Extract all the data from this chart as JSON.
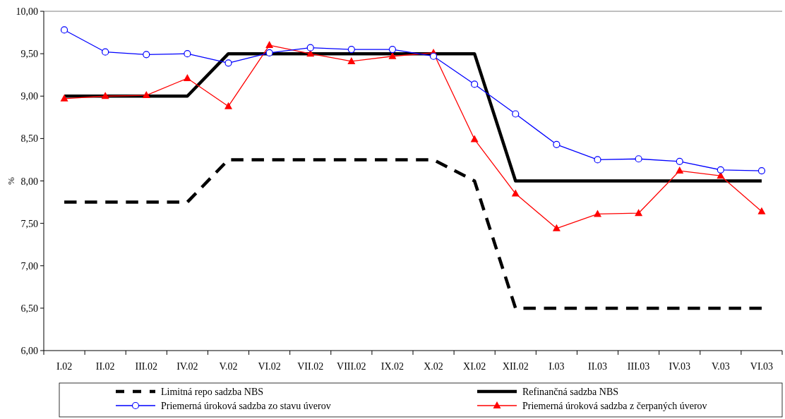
{
  "chart_data": {
    "type": "line",
    "ylabel": "%",
    "categories": [
      "I.02",
      "II.02",
      "III.02",
      "IV.02",
      "V.02",
      "VI.02",
      "VII.02",
      "VIII.02",
      "IX.02",
      "X.02",
      "XI.02",
      "XII.02",
      "I.03",
      "II.03",
      "III.03",
      "IV.03",
      "V.03",
      "VI.03"
    ],
    "ylim": [
      6,
      10
    ],
    "yticks": [
      {
        "value": 6,
        "label": "6,00"
      },
      {
        "value": 6.5,
        "label": "6,50"
      },
      {
        "value": 7,
        "label": "7,00"
      },
      {
        "value": 7.5,
        "label": "7,50"
      },
      {
        "value": 8,
        "label": "8,00"
      },
      {
        "value": 8.5,
        "label": "8,50"
      },
      {
        "value": 9,
        "label": "9,00"
      },
      {
        "value": 9.5,
        "label": "9,50"
      },
      {
        "value": 10,
        "label": "10,00"
      }
    ],
    "grid": false,
    "legend": "bottom",
    "series": [
      {
        "name": "Limitná repo sadzba NBS",
        "color": "#000000",
        "line_style": "dashed",
        "marker": "none",
        "values": [
          7.75,
          7.75,
          7.75,
          7.75,
          8.25,
          8.25,
          8.25,
          8.25,
          8.25,
          8.25,
          8.0,
          6.5,
          6.5,
          6.5,
          6.5,
          6.5,
          6.5,
          6.5
        ]
      },
      {
        "name": "Refinančná sadzba NBS",
        "color": "#000000",
        "line_style": "solid",
        "marker": "none",
        "values": [
          9.0,
          9.0,
          9.0,
          9.0,
          9.5,
          9.5,
          9.5,
          9.5,
          9.5,
          9.5,
          9.5,
          8.0,
          8.0,
          8.0,
          8.0,
          8.0,
          8.0,
          8.0
        ]
      },
      {
        "name": "Priemerná úroková sadzba zo stavu úverov",
        "color": "#0000ff",
        "line_style": "solid",
        "marker": "circle",
        "values": [
          9.78,
          9.52,
          9.49,
          9.5,
          9.39,
          9.51,
          9.57,
          9.55,
          9.55,
          9.47,
          9.14,
          8.79,
          8.43,
          8.25,
          8.26,
          8.23,
          8.13,
          8.12
        ]
      },
      {
        "name": "Priemerná úroková sadzba z čerpaných úverov",
        "color": "#ff0000",
        "line_style": "solid",
        "marker": "triangle",
        "values": [
          8.97,
          9.0,
          9.01,
          9.21,
          8.88,
          9.6,
          9.5,
          9.41,
          9.47,
          9.51,
          8.49,
          7.85,
          7.44,
          7.61,
          7.62,
          8.12,
          8.06,
          7.64
        ]
      }
    ]
  }
}
